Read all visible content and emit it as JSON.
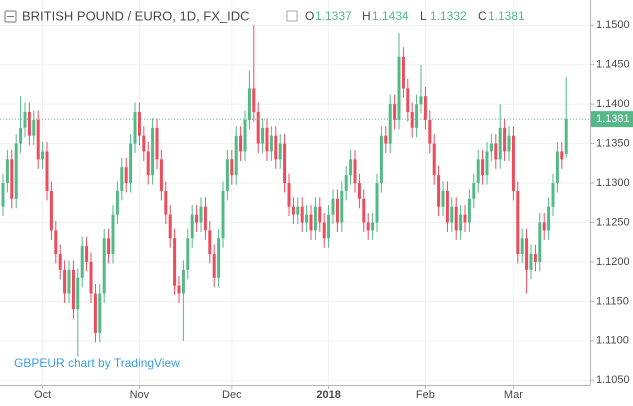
{
  "chart_data": {
    "type": "candlestick",
    "title": "BRITISH POUND / EURO, 1D, FX_IDC",
    "ohlc_labels": [
      "O",
      "H",
      "L",
      "C"
    ],
    "watermark": "GBPEUR chart by TradingView",
    "up_color": "#53b987",
    "down_color": "#eb4d5c",
    "grid": true,
    "categories": [
      null,
      null,
      null,
      null,
      null,
      null,
      null,
      null,
      null,
      "Oct",
      null,
      null,
      null,
      null,
      null,
      null,
      null,
      null,
      null,
      null,
      null,
      null,
      null,
      null,
      null,
      null,
      null,
      null,
      null,
      null,
      null,
      "Nov",
      null,
      null,
      null,
      null,
      null,
      null,
      null,
      null,
      null,
      null,
      null,
      null,
      null,
      null,
      null,
      null,
      null,
      null,
      null,
      null,
      "Dec",
      null,
      null,
      null,
      null,
      null,
      null,
      null,
      null,
      null,
      null,
      null,
      null,
      null,
      null,
      null,
      null,
      null,
      null,
      null,
      null,
      null,
      "2018",
      null,
      null,
      null,
      null,
      null,
      null,
      null,
      null,
      null,
      null,
      null,
      null,
      null,
      null,
      null,
      null,
      null,
      null,
      null,
      null,
      null,
      "Feb",
      null,
      null,
      null,
      null,
      null,
      null,
      null,
      null,
      null,
      null,
      null,
      null,
      null,
      null,
      null,
      null,
      null,
      null,
      null,
      "Mar",
      null,
      null,
      null,
      null,
      null,
      null,
      null,
      null,
      null,
      null,
      null,
      null
    ],
    "series": [
      {
        "name": "GBPEUR",
        "open": [
          1.127,
          1.13,
          1.133,
          1.128,
          1.135,
          1.137,
          1.139,
          1.136,
          1.138,
          1.133,
          1.134,
          1.129,
          1.124,
          1.121,
          1.119,
          1.116,
          1.119,
          1.114,
          1.118,
          1.122,
          1.12,
          1.116,
          1.111,
          1.116,
          1.123,
          1.121,
          1.126,
          1.129,
          1.132,
          1.13,
          1.135,
          1.139,
          1.136,
          1.134,
          1.131,
          1.137,
          1.133,
          1.129,
          1.126,
          1.123,
          1.117,
          1.116,
          1.119,
          1.123,
          1.126,
          1.125,
          1.127,
          1.124,
          1.121,
          1.118,
          1.123,
          1.129,
          1.133,
          1.131,
          1.136,
          1.134,
          1.138,
          1.142,
          1.139,
          1.135,
          1.137,
          1.134,
          1.136,
          1.133,
          1.135,
          1.13,
          1.127,
          1.126,
          1.127,
          1.125,
          1.126,
          1.124,
          1.127,
          1.125,
          1.123,
          1.126,
          1.128,
          1.125,
          1.129,
          1.131,
          1.133,
          1.13,
          1.128,
          1.125,
          1.124,
          1.125,
          1.13,
          1.136,
          1.135,
          1.14,
          1.138,
          1.146,
          1.142,
          1.139,
          1.137,
          1.14,
          1.141,
          1.138,
          1.135,
          1.131,
          1.127,
          1.129,
          1.125,
          1.127,
          1.124,
          1.126,
          1.125,
          1.128,
          1.13,
          1.133,
          1.131,
          1.134,
          1.135,
          1.133,
          1.137,
          1.134,
          1.136,
          1.129,
          1.121,
          1.123,
          1.119,
          1.121,
          1.12,
          1.125,
          1.124,
          1.127,
          1.13,
          1.134,
          1.1337
        ],
        "high": [
          1.1312,
          1.1342,
          1.1342,
          1.1362,
          1.141,
          1.1402,
          1.1402,
          1.1392,
          1.1392,
          1.1352,
          1.1352,
          1.1302,
          1.1252,
          1.1222,
          1.1202,
          1.1202,
          1.1202,
          1.1192,
          1.1232,
          1.1232,
          1.1212,
          1.1172,
          1.1172,
          1.1242,
          1.1242,
          1.1272,
          1.1302,
          1.1332,
          1.1332,
          1.1362,
          1.1402,
          1.1402,
          1.1372,
          1.1352,
          1.1382,
          1.1382,
          1.1342,
          1.1302,
          1.1272,
          1.1242,
          1.1182,
          1.1202,
          1.1242,
          1.1272,
          1.1272,
          1.1282,
          1.1282,
          1.1252,
          1.1222,
          1.1242,
          1.1302,
          1.1342,
          1.1342,
          1.1372,
          1.1372,
          1.1392,
          1.1442,
          1.15,
          1.1402,
          1.1382,
          1.1382,
          1.1372,
          1.1372,
          1.1362,
          1.1362,
          1.1312,
          1.1282,
          1.1282,
          1.1282,
          1.1272,
          1.1272,
          1.1282,
          1.1282,
          1.1262,
          1.1272,
          1.1292,
          1.1292,
          1.1302,
          1.1322,
          1.1342,
          1.1342,
          1.1312,
          1.1292,
          1.1262,
          1.1262,
          1.1312,
          1.1372,
          1.1372,
          1.1412,
          1.1412,
          1.149,
          1.1472,
          1.1432,
          1.1402,
          1.1412,
          1.145,
          1.1422,
          1.1392,
          1.1362,
          1.1322,
          1.1302,
          1.1302,
          1.1282,
          1.1282,
          1.1272,
          1.1272,
          1.1292,
          1.1312,
          1.1342,
          1.1342,
          1.1352,
          1.1362,
          1.1362,
          1.14,
          1.1382,
          1.1372,
          1.1372,
          1.1302,
          1.1242,
          1.1242,
          1.1222,
          1.1222,
          1.1262,
          1.1262,
          1.1282,
          1.1312,
          1.1352,
          1.1352,
          1.1434
        ],
        "low": [
          1.1258,
          1.1288,
          1.1268,
          1.1268,
          1.1338,
          1.1358,
          1.1348,
          1.1348,
          1.1318,
          1.1318,
          1.1278,
          1.1228,
          1.1198,
          1.1178,
          1.1148,
          1.1148,
          1.1128,
          1.108,
          1.1168,
          1.1188,
          1.1148,
          1.1098,
          1.1098,
          1.1148,
          1.1198,
          1.1198,
          1.1248,
          1.1278,
          1.1288,
          1.1288,
          1.1338,
          1.1348,
          1.1328,
          1.1298,
          1.1298,
          1.1318,
          1.1278,
          1.1248,
          1.1218,
          1.1158,
          1.1148,
          1.11,
          1.1178,
          1.1218,
          1.1238,
          1.1238,
          1.1228,
          1.1198,
          1.1168,
          1.1168,
          1.1218,
          1.1278,
          1.1298,
          1.1298,
          1.1328,
          1.1328,
          1.1368,
          1.1378,
          1.1338,
          1.1338,
          1.1328,
          1.1328,
          1.1318,
          1.1318,
          1.1288,
          1.1258,
          1.1248,
          1.1248,
          1.1238,
          1.1238,
          1.1228,
          1.1228,
          1.1238,
          1.1218,
          1.1218,
          1.1248,
          1.1238,
          1.1238,
          1.1278,
          1.1298,
          1.1288,
          1.1268,
          1.1238,
          1.1228,
          1.1228,
          1.1238,
          1.1288,
          1.1338,
          1.1338,
          1.1368,
          1.1368,
          1.1408,
          1.1378,
          1.1358,
          1.1358,
          1.1388,
          1.1368,
          1.1338,
          1.1298,
          1.1258,
          1.1258,
          1.1238,
          1.1238,
          1.1228,
          1.1228,
          1.1238,
          1.1238,
          1.1268,
          1.1288,
          1.1298,
          1.1298,
          1.1328,
          1.1318,
          1.1318,
          1.1328,
          1.1328,
          1.1278,
          1.1198,
          1.1198,
          1.116,
          1.1178,
          1.1188,
          1.1188,
          1.1228,
          1.1228,
          1.1258,
          1.1288,
          1.1318,
          1.1332
        ],
        "close": [
          1.13,
          1.133,
          1.128,
          1.135,
          1.137,
          1.139,
          1.136,
          1.138,
          1.133,
          1.134,
          1.129,
          1.124,
          1.121,
          1.119,
          1.116,
          1.119,
          1.114,
          1.118,
          1.122,
          1.12,
          1.116,
          1.111,
          1.116,
          1.123,
          1.121,
          1.126,
          1.129,
          1.132,
          1.13,
          1.135,
          1.139,
          1.136,
          1.134,
          1.131,
          1.137,
          1.133,
          1.129,
          1.126,
          1.123,
          1.117,
          1.116,
          1.119,
          1.123,
          1.126,
          1.125,
          1.127,
          1.124,
          1.121,
          1.118,
          1.123,
          1.129,
          1.133,
          1.131,
          1.136,
          1.134,
          1.138,
          1.142,
          1.139,
          1.135,
          1.137,
          1.134,
          1.136,
          1.133,
          1.135,
          1.13,
          1.127,
          1.126,
          1.127,
          1.125,
          1.126,
          1.124,
          1.127,
          1.125,
          1.123,
          1.126,
          1.128,
          1.125,
          1.129,
          1.131,
          1.133,
          1.13,
          1.128,
          1.125,
          1.124,
          1.125,
          1.13,
          1.136,
          1.135,
          1.14,
          1.138,
          1.146,
          1.142,
          1.139,
          1.137,
          1.14,
          1.141,
          1.138,
          1.135,
          1.131,
          1.127,
          1.129,
          1.125,
          1.127,
          1.124,
          1.126,
          1.125,
          1.128,
          1.13,
          1.133,
          1.131,
          1.134,
          1.135,
          1.133,
          1.137,
          1.134,
          1.136,
          1.129,
          1.121,
          1.123,
          1.119,
          1.121,
          1.12,
          1.125,
          1.124,
          1.127,
          1.13,
          1.134,
          1.133,
          1.1381
        ]
      }
    ],
    "ylim": [
      1.1044,
      1.1532
    ],
    "yticks": [
      {
        "value": 1.105,
        "label": "1.1050"
      },
      {
        "value": 1.11,
        "label": "1.1100"
      },
      {
        "value": 1.115,
        "label": "1.1150"
      },
      {
        "value": 1.12,
        "label": "1.1200"
      },
      {
        "value": 1.125,
        "label": "1.1250"
      },
      {
        "value": 1.13,
        "label": "1.1300"
      },
      {
        "value": 1.135,
        "label": "1.1350"
      },
      {
        "value": 1.14,
        "label": "1.1400"
      },
      {
        "value": 1.145,
        "label": "1.1450"
      },
      {
        "value": 1.15,
        "label": "1.1500"
      }
    ]
  }
}
